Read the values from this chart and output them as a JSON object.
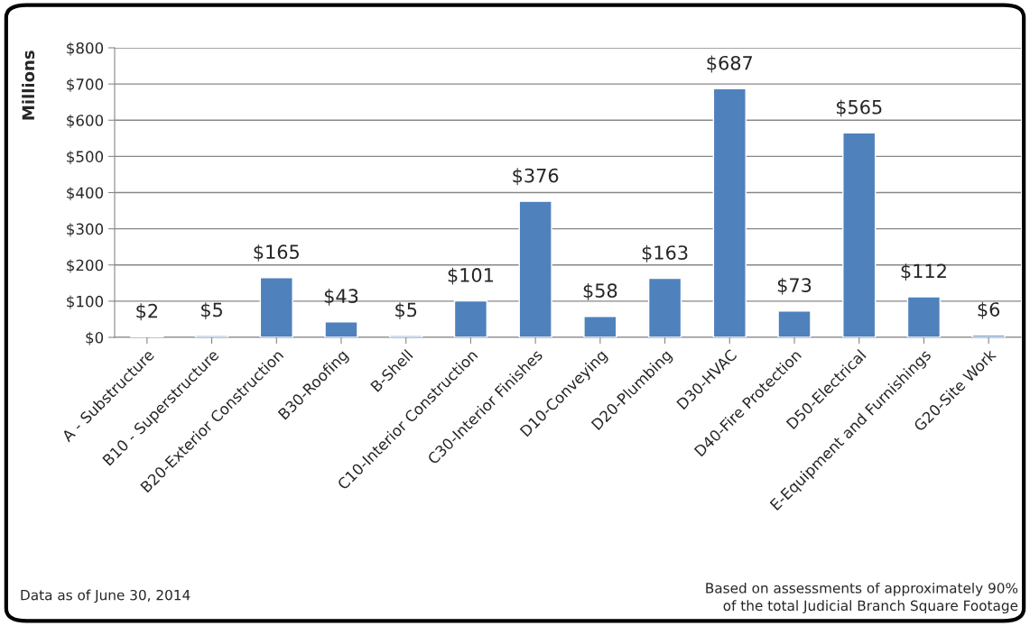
{
  "chart_data": {
    "type": "bar",
    "ylabel": "Millions",
    "categories": [
      "A - Substructure",
      "B10 - Superstructure",
      "B20-Exterior Construction",
      "B30-Roofing",
      "B-Shell",
      "C10-Interior Construction",
      "C30-Interior Finishes",
      "D10-Conveying",
      "D20-Plumbing",
      "D30-HVAC",
      "D40-Fire Protection",
      "D50-Electrical",
      "E-Equipment and Furnishings",
      "G20-Site Work"
    ],
    "values": [
      2,
      5,
      165,
      43,
      5,
      101,
      376,
      58,
      163,
      687,
      73,
      565,
      112,
      6
    ],
    "value_labels": [
      "$2",
      "$5",
      "$165",
      "$43",
      "$5",
      "$101",
      "$376",
      "$58",
      "$163",
      "$687",
      "$73",
      "$565",
      "$112",
      "$6"
    ],
    "color": "#4f81bd",
    "ylim": [
      0,
      800
    ],
    "yticks": [
      {
        "value": 0,
        "label": "$0"
      },
      {
        "value": 100,
        "label": "$100"
      },
      {
        "value": 200,
        "label": "$200"
      },
      {
        "value": 300,
        "label": "$300"
      },
      {
        "value": 400,
        "label": "$400"
      },
      {
        "value": 500,
        "label": "$500"
      },
      {
        "value": 600,
        "label": "$600"
      },
      {
        "value": 700,
        "label": "$700"
      },
      {
        "value": 800,
        "label": "$800"
      }
    ],
    "grid": "y",
    "annotations": [
      "Data as of June 30, 2014",
      "Based on assessments of approximately 90%\nof the total Judicial Branch Square Footage"
    ]
  }
}
